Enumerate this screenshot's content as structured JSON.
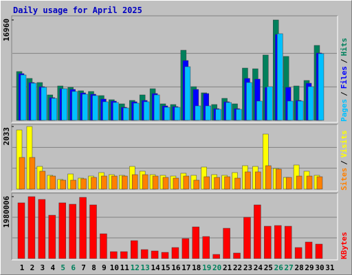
{
  "title": "Daily usage for April 2025",
  "legend_separator": "/",
  "highlight_categories": [
    "5",
    "6",
    "12",
    "13",
    "19",
    "20",
    "26",
    "27"
  ],
  "highlight_color": "#00805c",
  "chart_data": [
    {
      "type": "bar",
      "ylim": [
        0,
        16960
      ],
      "yticks": [
        16960
      ],
      "categories": [
        "1",
        "2",
        "3",
        "4",
        "5",
        "6",
        "7",
        "8",
        "9",
        "10",
        "11",
        "12",
        "13",
        "14",
        "15",
        "16",
        "17",
        "18",
        "19",
        "20",
        "21",
        "22",
        "23",
        "24",
        "25",
        "26",
        "27",
        "28",
        "29",
        "30",
        "31"
      ],
      "series": [
        {
          "name": "Hits",
          "color": "#00805c",
          "values": [
            8248,
            7086,
            6389,
            4298,
            5808,
            5576,
            4995,
            4879,
            4182,
            3485,
            2788,
            3369,
            4298,
            5344,
            2788,
            2672,
            11849,
            5692,
            4647,
            2672,
            3717,
            2788,
            8829,
            8712,
            11036,
            16960,
            10803,
            5808,
            6738,
            12662,
            null
          ]
        },
        {
          "name": "Files",
          "color": "#0000ff",
          "values": [
            7900,
            6389,
            5692,
            3834,
            5344,
            5228,
            4647,
            4414,
            3601,
            3253,
            2207,
            3137,
            3369,
            4531,
            2440,
            2323,
            10107,
            5228,
            4531,
            1975,
            3137,
            1975,
            7086,
            6970,
            5576,
            14521,
            5576,
            3369,
            6273,
            11384,
            null
          ]
        },
        {
          "name": "Pages",
          "color": "#00c0ff",
          "values": [
            7667,
            6273,
            5576,
            3717,
            5344,
            4879,
            4414,
            4182,
            3137,
            3020,
            2091,
            2904,
            3137,
            4298,
            2207,
            2207,
            9061,
            2440,
            2440,
            1859,
            3020,
            1859,
            6389,
            3253,
            5692,
            14637,
            3253,
            3253,
            5692,
            11268,
            null
          ]
        }
      ]
    },
    {
      "type": "bar",
      "ylim": [
        0,
        2033
      ],
      "yticks": [
        2033
      ],
      "categories": [
        "1",
        "2",
        "3",
        "4",
        "5",
        "6",
        "7",
        "8",
        "9",
        "10",
        "11",
        "12",
        "13",
        "14",
        "15",
        "16",
        "17",
        "18",
        "19",
        "20",
        "21",
        "22",
        "23",
        "24",
        "25",
        "26",
        "27",
        "28",
        "29",
        "30",
        "31"
      ],
      "series": [
        {
          "name": "Visits",
          "color": "#ffff00",
          "values": [
            1921,
            2033,
            737,
            447,
            313,
            491,
            357,
            424,
            536,
            469,
            447,
            737,
            581,
            469,
            447,
            424,
            514,
            447,
            715,
            469,
            447,
            536,
            760,
            737,
            1787,
            670,
            380,
            782,
            581,
            447,
            null
          ]
        },
        {
          "name": "Sites",
          "color": "#ff8000",
          "values": [
            1028,
            1028,
            581,
            424,
            290,
            290,
            335,
            380,
            424,
            424,
            424,
            469,
            469,
            424,
            380,
            357,
            424,
            290,
            402,
            380,
            402,
            357,
            559,
            559,
            760,
            648,
            380,
            424,
            424,
            402,
            null
          ]
        }
      ]
    },
    {
      "type": "bar",
      "ylim": [
        0,
        1980006
      ],
      "yticks": [
        1980006
      ],
      "categories": [
        "1",
        "2",
        "3",
        "4",
        "5",
        "6",
        "7",
        "8",
        "9",
        "10",
        "11",
        "12",
        "13",
        "14",
        "15",
        "16",
        "17",
        "18",
        "19",
        "20",
        "21",
        "22",
        "23",
        "24",
        "25",
        "26",
        "27",
        "28",
        "29",
        "30",
        "31"
      ],
      "series": [
        {
          "name": "KBytes",
          "color": "#ff0000",
          "values": [
            1782005,
            1980006,
            1892006,
            1386004,
            1782005,
            1738005,
            1958006,
            1716005,
            792002,
            220001,
            220001,
            572002,
            286001,
            242001,
            198001,
            352001,
            638002,
            1012003,
            704002,
            132000,
            968003,
            176001,
            1320004,
            1716005,
            1034003,
            1056003,
            1034003,
            352001,
            528002,
            462001,
            null
          ]
        }
      ]
    }
  ]
}
